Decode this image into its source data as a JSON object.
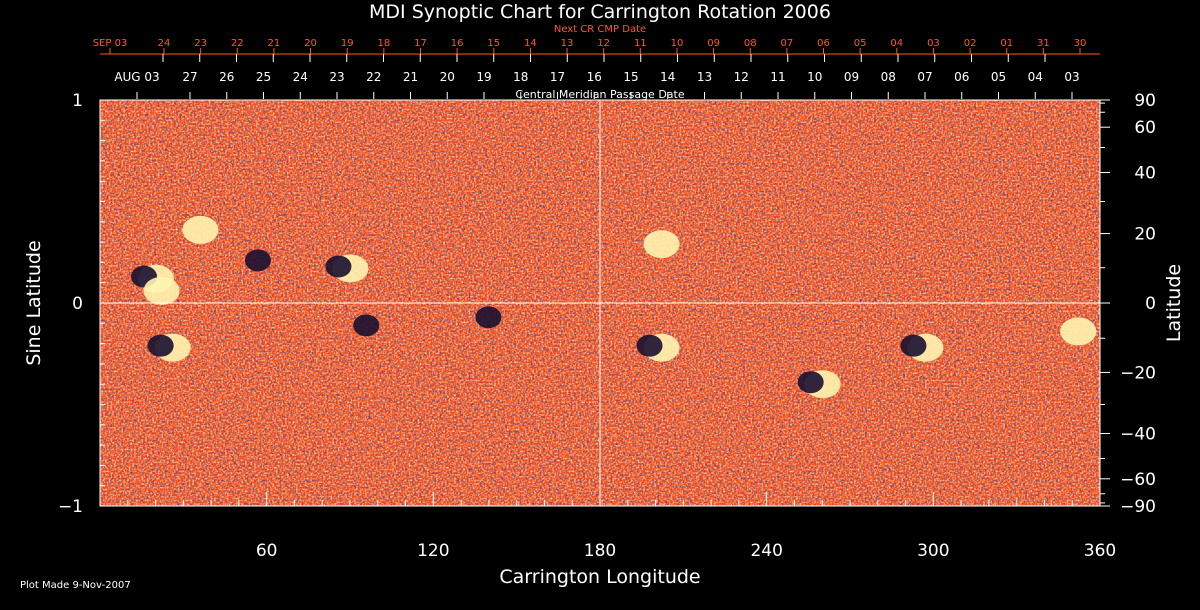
{
  "chart_data": {
    "type": "heatmap",
    "title": "MDI Synoptic Chart for Carrington Rotation 2006",
    "xlabel": "Carrington Longitude",
    "ylabel_left": "Sine Latitude",
    "ylabel_right": "Latitude",
    "top_axis_label": "Central Meridian Passage Date",
    "next_axis_label": "Next CR CMP Date",
    "xlim": [
      0,
      360
    ],
    "ylim": [
      -1,
      1
    ],
    "x_ticks": [
      60,
      120,
      180,
      240,
      300,
      360
    ],
    "y_ticks_left": [
      {
        "value": 1,
        "label": "1"
      },
      {
        "value": 0,
        "label": "0"
      },
      {
        "value": -1,
        "label": "−1"
      }
    ],
    "y_ticks_right_deg": [
      90,
      60,
      40,
      20,
      0,
      -20,
      -40,
      -60,
      -90
    ],
    "y_ticks_right_labels": [
      "90",
      "60",
      "40",
      "20",
      "0",
      "−20",
      "−40",
      "−60",
      "−90"
    ],
    "cmp_dates": [
      "AUG 03",
      "27",
      "26",
      "25",
      "24",
      "23",
      "22",
      "21",
      "20",
      "19",
      "18",
      "17",
      "16",
      "15",
      "14",
      "13",
      "12",
      "11",
      "10",
      "09",
      "08",
      "07",
      "06",
      "05",
      "04",
      "03"
    ],
    "next_cr_dates": [
      "SEP 03",
      "24",
      "23",
      "22",
      "21",
      "20",
      "19",
      "18",
      "17",
      "16",
      "15",
      "14",
      "13",
      "12",
      "11",
      "10",
      "09",
      "08",
      "07",
      "06",
      "05",
      "04",
      "03",
      "02",
      "01",
      "31",
      "30"
    ],
    "grid": true,
    "guide_lines": {
      "longitude": 180,
      "sine_latitude": 0
    },
    "active_regions": [
      {
        "lon": 18,
        "sinlat": 0.12,
        "polarity": "mixed"
      },
      {
        "lon": 20,
        "sinlat": 0.06,
        "polarity": "positive"
      },
      {
        "lon": 34,
        "sinlat": 0.36,
        "polarity": "positive"
      },
      {
        "lon": 59,
        "sinlat": 0.2,
        "polarity": "negative"
      },
      {
        "lon": 88,
        "sinlat": 0.17,
        "polarity": "mixed"
      },
      {
        "lon": 24,
        "sinlat": -0.22,
        "polarity": "mixed"
      },
      {
        "lon": 98,
        "sinlat": -0.12,
        "polarity": "negative"
      },
      {
        "lon": 142,
        "sinlat": -0.08,
        "polarity": "negative"
      },
      {
        "lon": 200,
        "sinlat": 0.29,
        "polarity": "positive"
      },
      {
        "lon": 200,
        "sinlat": -0.22,
        "polarity": "mixed"
      },
      {
        "lon": 258,
        "sinlat": -0.4,
        "polarity": "mixed"
      },
      {
        "lon": 295,
        "sinlat": -0.22,
        "polarity": "mixed"
      },
      {
        "lon": 350,
        "sinlat": -0.14,
        "polarity": "positive"
      }
    ],
    "colors": {
      "background": "#000000",
      "field_base": "#ff4a10",
      "positive": "#fff4b0",
      "negative": "#1a1030",
      "axes": "#ffffff",
      "date_red": "#ff5a1e"
    }
  },
  "footer": {
    "plot_made": "Plot Made  9-Nov-2007"
  }
}
